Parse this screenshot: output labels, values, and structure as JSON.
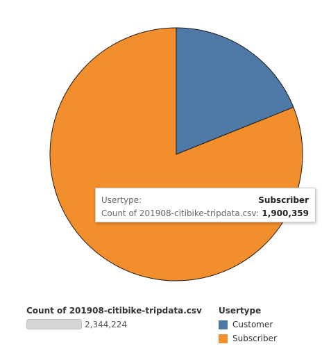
{
  "chart_data": {
    "type": "pie",
    "categories": [
      "Customer",
      "Subscriber"
    ],
    "values": [
      443865,
      1900359
    ],
    "colors": [
      "#4e79a7",
      "#f28e2b"
    ],
    "legend_title": "Usertype",
    "size_legend": {
      "title": "Count of 201908-citibike-tripdata.csv",
      "value_label": "2,344,224"
    },
    "tooltip": {
      "field1_label": "Usertype:",
      "field1_value": "Subscriber",
      "field2_label": "Count of 201908-citibike-tripdata.csv:",
      "field2_value": "1,900,359"
    }
  }
}
